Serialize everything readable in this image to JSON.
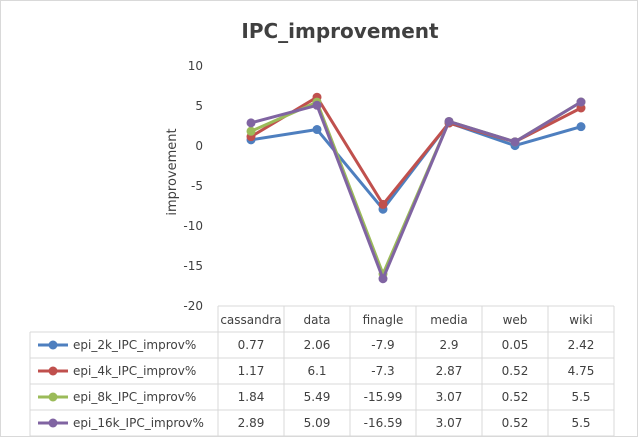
{
  "chart_data": {
    "type": "line",
    "title": "IPC_improvement",
    "xlabel": "",
    "ylabel": "improvement",
    "ylim": [
      -20,
      10
    ],
    "yticks": [
      "10",
      "5",
      "0",
      "-5",
      "-10",
      "-15",
      "-20"
    ],
    "grid": false,
    "legend": "data-table",
    "categories": [
      "cassandra",
      "data",
      "finagle",
      "media",
      "web",
      "wiki"
    ],
    "series": [
      {
        "name": "epi_2k_IPC_improv%",
        "color": "#4e7fbf",
        "values": [
          0.77,
          2.06,
          -7.9,
          2.9,
          0.05,
          2.42
        ],
        "labels": [
          "0.77",
          "2.06",
          "-7.9",
          "2.9",
          "0.05",
          "2.42"
        ]
      },
      {
        "name": "epi_4k_IPC_improv%",
        "color": "#c0504d",
        "values": [
          1.17,
          6.1,
          -7.3,
          2.87,
          0.52,
          4.75
        ],
        "labels": [
          "1.17",
          "6.1",
          "-7.3",
          "2.87",
          "0.52",
          "4.75"
        ]
      },
      {
        "name": "epi_8k_IPC_improv%",
        "color": "#9bbb59",
        "values": [
          1.84,
          5.49,
          -15.99,
          3.07,
          0.52,
          5.5
        ],
        "labels": [
          "1.84",
          "5.49",
          "-15.99",
          "3.07",
          "0.52",
          "5.5"
        ]
      },
      {
        "name": "epi_16k_IPC_improv%",
        "color": "#8064a2",
        "values": [
          2.89,
          5.09,
          -16.59,
          3.07,
          0.52,
          5.5
        ],
        "labels": [
          "2.89",
          "5.09",
          "-16.59",
          "3.07",
          "0.52",
          "5.5"
        ]
      }
    ]
  }
}
